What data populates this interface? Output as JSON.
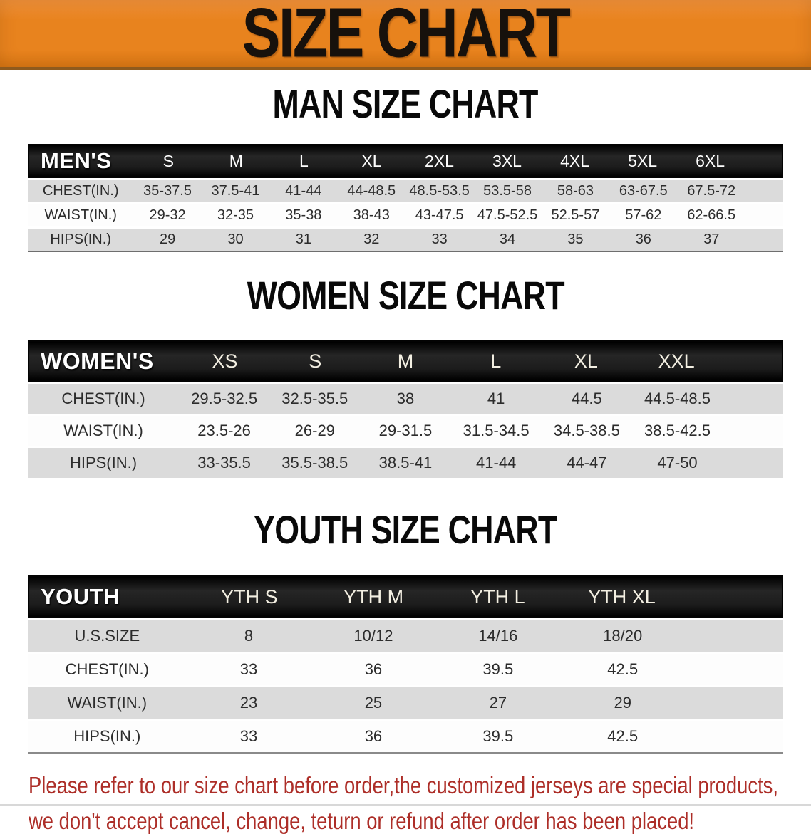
{
  "banner": {
    "title": "SIZE CHART"
  },
  "colors": {
    "banner_orange": "#E8831E",
    "header_black": "#1C1C1C",
    "row_gray": "#DBDBDB",
    "footer_red": "#AD2E28"
  },
  "sections": [
    {
      "heading": "MAN SIZE CHART",
      "corner_label": "MEN'S",
      "columns": [
        "S",
        "M",
        "L",
        "XL",
        "2XL",
        "3XL",
        "4XL",
        "5XL",
        "6XL"
      ],
      "rows": [
        {
          "label": "CHEST(IN.)",
          "values": [
            "35-37.5",
            "37.5-41",
            "41-44",
            "44-48.5",
            "48.5-53.5",
            "53.5-58",
            "58-63",
            "63-67.5",
            "67.5-72"
          ]
        },
        {
          "label": "WAIST(IN.)",
          "values": [
            "29-32",
            "32-35",
            "35-38",
            "38-43",
            "43-47.5",
            "47.5-52.5",
            "52.5-57",
            "57-62",
            "62-66.5"
          ]
        },
        {
          "label": "HIPS(IN.)",
          "values": [
            "29",
            "30",
            "31",
            "32",
            "33",
            "34",
            "35",
            "36",
            "37"
          ]
        }
      ]
    },
    {
      "heading": "WOMEN SIZE CHART",
      "corner_label": "WOMEN'S",
      "columns": [
        "XS",
        "S",
        "M",
        "L",
        "XL",
        "XXL"
      ],
      "rows": [
        {
          "label": "CHEST(IN.)",
          "values": [
            "29.5-32.5",
            "32.5-35.5",
            "38",
            "41",
            "44.5",
            "44.5-48.5"
          ]
        },
        {
          "label": "WAIST(IN.)",
          "values": [
            "23.5-26",
            "26-29",
            "29-31.5",
            "31.5-34.5",
            "34.5-38.5",
            "38.5-42.5"
          ]
        },
        {
          "label": "HIPS(IN.)",
          "values": [
            "33-35.5",
            "35.5-38.5",
            "38.5-41",
            "41-44",
            "44-47",
            "47-50"
          ]
        }
      ]
    },
    {
      "heading": "YOUTH SIZE CHART",
      "corner_label": "YOUTH",
      "columns": [
        "YTH S",
        "YTH M",
        "YTH L",
        "YTH XL"
      ],
      "rows": [
        {
          "label": "U.S.SIZE",
          "values": [
            "8",
            "10/12",
            "14/16",
            "18/20"
          ]
        },
        {
          "label": "CHEST(IN.)",
          "values": [
            "33",
            "36",
            "39.5",
            "42.5"
          ]
        },
        {
          "label": "WAIST(IN.)",
          "values": [
            "23",
            "25",
            "27",
            "29"
          ]
        },
        {
          "label": "HIPS(IN.)",
          "values": [
            "33",
            "36",
            "39.5",
            "42.5"
          ]
        }
      ]
    }
  ],
  "footer": {
    "line1": "Please refer to our size chart before order,the customized jerseys are special products,",
    "line2": "we don't accept cancel, change, teturn or refund after order has been placed!"
  },
  "chart_data": [
    {
      "type": "table",
      "title": "MAN SIZE CHART",
      "columns": [
        "MEN'S",
        "S",
        "M",
        "L",
        "XL",
        "2XL",
        "3XL",
        "4XL",
        "5XL",
        "6XL"
      ],
      "rows": [
        [
          "CHEST(IN.)",
          "35-37.5",
          "37.5-41",
          "41-44",
          "44-48.5",
          "48.5-53.5",
          "53.5-58",
          "58-63",
          "63-67.5",
          "67.5-72"
        ],
        [
          "WAIST(IN.)",
          "29-32",
          "32-35",
          "35-38",
          "38-43",
          "43-47.5",
          "47.5-52.5",
          "52.5-57",
          "57-62",
          "62-66.5"
        ],
        [
          "HIPS(IN.)",
          "29",
          "30",
          "31",
          "32",
          "33",
          "34",
          "35",
          "36",
          "37"
        ]
      ]
    },
    {
      "type": "table",
      "title": "WOMEN SIZE CHART",
      "columns": [
        "WOMEN'S",
        "XS",
        "S",
        "M",
        "L",
        "XL",
        "XXL"
      ],
      "rows": [
        [
          "CHEST(IN.)",
          "29.5-32.5",
          "32.5-35.5",
          "38",
          "41",
          "44.5",
          "44.5-48.5"
        ],
        [
          "WAIST(IN.)",
          "23.5-26",
          "26-29",
          "29-31.5",
          "31.5-34.5",
          "34.5-38.5",
          "38.5-42.5"
        ],
        [
          "HIPS(IN.)",
          "33-35.5",
          "35.5-38.5",
          "38.5-41",
          "41-44",
          "44-47",
          "47-50"
        ]
      ]
    },
    {
      "type": "table",
      "title": "YOUTH SIZE CHART",
      "columns": [
        "YOUTH",
        "YTH S",
        "YTH M",
        "YTH L",
        "YTH XL"
      ],
      "rows": [
        [
          "U.S.SIZE",
          "8",
          "10/12",
          "14/16",
          "18/20"
        ],
        [
          "CHEST(IN.)",
          "33",
          "36",
          "39.5",
          "42.5"
        ],
        [
          "WAIST(IN.)",
          "23",
          "25",
          "27",
          "29"
        ],
        [
          "HIPS(IN.)",
          "33",
          "36",
          "39.5",
          "42.5"
        ]
      ]
    }
  ]
}
